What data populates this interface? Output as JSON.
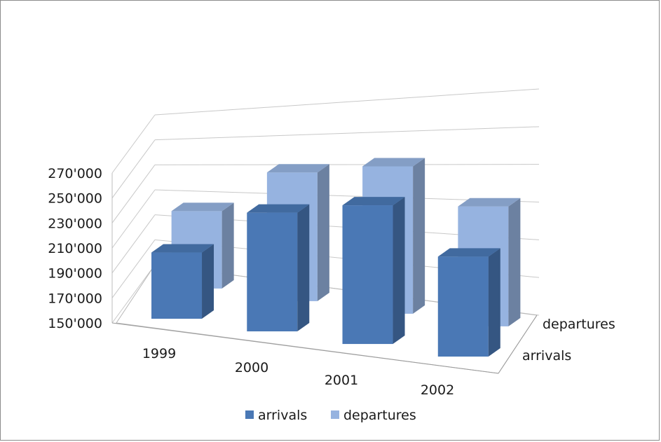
{
  "chart_data": {
    "type": "bar",
    "variant": "3d-column",
    "categories": [
      "1999",
      "2000",
      "2001",
      "2002"
    ],
    "series": [
      {
        "name": "arrivals",
        "values": [
          203000,
          245000,
          261000,
          230000
        ],
        "color": "#4a78b5"
      },
      {
        "name": "departures",
        "values": [
          212000,
          253000,
          268000,
          246000
        ],
        "color": "#96b3e0"
      }
    ],
    "y_ticks": [
      "150'000",
      "170'000",
      "190'000",
      "210'000",
      "230'000",
      "250'000",
      "270'000"
    ],
    "ylim": [
      150000,
      270000
    ],
    "depth_labels": [
      "departures",
      "arrivals"
    ],
    "legend": {
      "position": "bottom",
      "items": [
        "arrivals",
        "departures"
      ]
    },
    "grid": true
  }
}
